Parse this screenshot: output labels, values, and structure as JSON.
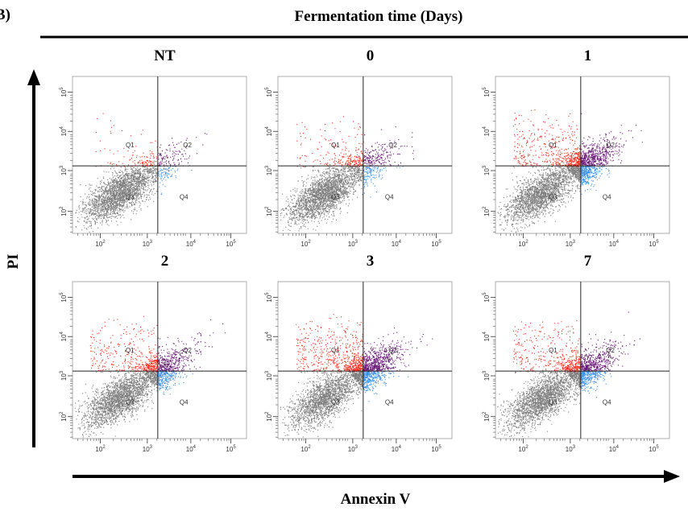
{
  "figure": {
    "label": "B)",
    "title": "Fermentation time (Days)",
    "y_axis_label": "PI",
    "x_axis_label": "Annexin V",
    "panels": [
      {
        "title": "NT",
        "quadrants": [
          "Q1",
          "Q2",
          "Q3",
          "Q4"
        ],
        "x_ticks": [
          {
            "base": "10",
            "exp": "2"
          },
          {
            "base": "10",
            "exp": "3"
          },
          {
            "base": "10",
            "exp": "4"
          },
          {
            "base": "10",
            "exp": "5"
          }
        ],
        "y_ticks": [
          {
            "base": "10",
            "exp": "2"
          },
          {
            "base": "10",
            "exp": "3"
          },
          {
            "base": "10",
            "exp": "4"
          },
          {
            "base": "10",
            "exp": "5"
          }
        ]
      },
      {
        "title": "0",
        "quadrants": [
          "Q1",
          "Q2",
          "Q3",
          "Q4"
        ],
        "x_ticks": [
          {
            "base": "10",
            "exp": "2"
          },
          {
            "base": "10",
            "exp": "3"
          },
          {
            "base": "10",
            "exp": "4"
          },
          {
            "base": "10",
            "exp": "5"
          }
        ],
        "y_ticks": [
          {
            "base": "10",
            "exp": "2"
          },
          {
            "base": "10",
            "exp": "3"
          },
          {
            "base": "10",
            "exp": "4"
          },
          {
            "base": "10",
            "exp": "5"
          }
        ]
      },
      {
        "title": "1",
        "quadrants": [
          "Q1",
          "Q2",
          "Q3",
          "Q4"
        ],
        "x_ticks": [
          {
            "base": "10",
            "exp": "2"
          },
          {
            "base": "10",
            "exp": "3"
          },
          {
            "base": "10",
            "exp": "4"
          },
          {
            "base": "10",
            "exp": "5"
          }
        ],
        "y_ticks": [
          {
            "base": "10",
            "exp": "2"
          },
          {
            "base": "10",
            "exp": "3"
          },
          {
            "base": "10",
            "exp": "4"
          },
          {
            "base": "10",
            "exp": "5"
          }
        ]
      },
      {
        "title": "2",
        "quadrants": [
          "Q1",
          "Q2",
          "Q3",
          "Q4"
        ],
        "x_ticks": [
          {
            "base": "10",
            "exp": "2"
          },
          {
            "base": "10",
            "exp": "3"
          },
          {
            "base": "10",
            "exp": "4"
          },
          {
            "base": "10",
            "exp": "5"
          }
        ],
        "y_ticks": [
          {
            "base": "10",
            "exp": "2"
          },
          {
            "base": "10",
            "exp": "3"
          },
          {
            "base": "10",
            "exp": "4"
          },
          {
            "base": "10",
            "exp": "5"
          }
        ]
      },
      {
        "title": "3",
        "quadrants": [
          "Q1",
          "Q2",
          "Q3",
          "Q4"
        ],
        "x_ticks": [
          {
            "base": "10",
            "exp": "2"
          },
          {
            "base": "10",
            "exp": "3"
          },
          {
            "base": "10",
            "exp": "4"
          },
          {
            "base": "10",
            "exp": "5"
          }
        ],
        "y_ticks": [
          {
            "base": "10",
            "exp": "2"
          },
          {
            "base": "10",
            "exp": "3"
          },
          {
            "base": "10",
            "exp": "4"
          },
          {
            "base": "10",
            "exp": "5"
          }
        ]
      },
      {
        "title": "7",
        "quadrants": [
          "Q1",
          "Q2",
          "Q3",
          "Q4"
        ],
        "x_ticks": [
          {
            "base": "10",
            "exp": "2"
          },
          {
            "base": "10",
            "exp": "3"
          },
          {
            "base": "10",
            "exp": "4"
          },
          {
            "base": "10",
            "exp": "5"
          }
        ],
        "y_ticks": [
          {
            "base": "10",
            "exp": "2"
          },
          {
            "base": "10",
            "exp": "3"
          },
          {
            "base": "10",
            "exp": "4"
          },
          {
            "base": "10",
            "exp": "5"
          }
        ]
      }
    ]
  }
}
